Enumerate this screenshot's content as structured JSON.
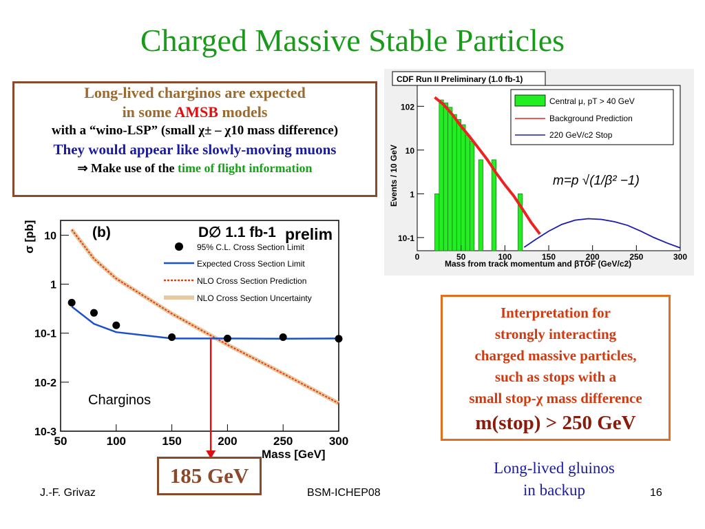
{
  "slide": {
    "title": "Charged Massive Stable Particles",
    "footer_left": "J.-F. Grivaz",
    "footer_center": "BSM-ICHEP08",
    "footer_page": "16"
  },
  "box_left": {
    "line1": "Long-lived charginos are expected",
    "line2_pre": "in some ",
    "line2_red": "AMSB",
    "line2_post": " models",
    "line3": "with a “wino-LSP” (small χ± – χ10 mass difference)",
    "line4": "They would appear like slowly-moving muons",
    "line5_pre": "⇒ Make use of the ",
    "line5_green": "time of flight information"
  },
  "box_right": {
    "line1": "Interpretation for",
    "line2": "strongly interacting",
    "line3": "charged massive particles,",
    "line4": "such as stops with a",
    "line5": "small stop-χ mass difference",
    "line6": "m(stop) > 250 GeV"
  },
  "limit_box": "185 GeV",
  "backup_note": {
    "line1": "Long-lived gluinos",
    "line2": "in backup"
  },
  "chart_data": [
    {
      "type": "line",
      "panel_label": "(b)",
      "experiment": "D∅ 1.1 fb-1",
      "prelim": "prelim",
      "annotation": "Charginos",
      "xlabel": "Mass [GeV]",
      "ylabel": "σ [pb]",
      "xlim": [
        50,
        300
      ],
      "ylim": [
        0.001,
        20
      ],
      "yscale": "log",
      "x_ticks": [
        "50",
        "100",
        "150",
        "200",
        "250",
        "300"
      ],
      "y_ticks": [
        "10-3",
        "10-2",
        "10-1",
        "1",
        "10"
      ],
      "legend": [
        "95% C.L. Cross Section Limit",
        "Expected Cross Section Limit",
        "NLO Cross Section Prediction",
        "NLO Cross Section Uncertainty"
      ],
      "series": [
        {
          "name": "95% C.L. Cross Section Limit",
          "type": "scatter",
          "color": "#000000",
          "points": [
            [
              60,
              0.42
            ],
            [
              80,
              0.26
            ],
            [
              100,
              0.145
            ],
            [
              150,
              0.083
            ],
            [
              200,
              0.078
            ],
            [
              250,
              0.083
            ],
            [
              300,
              0.077
            ]
          ]
        },
        {
          "name": "Expected Cross Section Limit",
          "type": "line",
          "color": "#1a4fd0",
          "points": [
            [
              60,
              0.35
            ],
            [
              80,
              0.155
            ],
            [
              100,
              0.105
            ],
            [
              150,
              0.078
            ],
            [
              200,
              0.078
            ],
            [
              250,
              0.077
            ],
            [
              300,
              0.078
            ]
          ]
        },
        {
          "name": "NLO Cross Section Prediction",
          "type": "line",
          "color": "#e04010",
          "points": [
            [
              60,
              13
            ],
            [
              80,
              3.3
            ],
            [
              100,
              1.3
            ],
            [
              150,
              0.25
            ],
            [
              200,
              0.058
            ],
            [
              250,
              0.015
            ],
            [
              300,
              0.0037
            ]
          ]
        }
      ],
      "limit_marker_x": 185
    },
    {
      "type": "bar",
      "title": "CDF Run II Preliminary (1.0 fb-1)",
      "xlabel": "Mass from track momentum and βTOF (GeV/c2)",
      "ylabel": "Events / 10 GeV",
      "xlim": [
        0,
        300
      ],
      "ylim": [
        0.05,
        300
      ],
      "yscale": "log",
      "x_ticks": [
        "0",
        "50",
        "100",
        "150",
        "200",
        "250",
        "300"
      ],
      "y_ticks": [
        "10-1",
        "1",
        "10",
        "102"
      ],
      "formula": "m=p √(1/β² −1)",
      "legend": [
        "Central μ, pT > 40 GeV",
        "Background Prediction",
        "220 GeV/c2 Stop"
      ],
      "histogram": {
        "name": "Central μ, pT > 40 GeV",
        "color": "#22ee22",
        "bins": [
          [
            15,
            0.07
          ],
          [
            20,
            1.0
          ],
          [
            25,
            140
          ],
          [
            30,
            120
          ],
          [
            35,
            95
          ],
          [
            40,
            65
          ],
          [
            45,
            50
          ],
          [
            50,
            38
          ],
          [
            55,
            22
          ],
          [
            60,
            16
          ],
          [
            65,
            0.07
          ],
          [
            70,
            6
          ],
          [
            80,
            0.07
          ],
          [
            85,
            6
          ],
          [
            100,
            0.07
          ],
          [
            115,
            1.0
          ]
        ]
      },
      "background": {
        "name": "Background Prediction",
        "color": "#ee2020",
        "points": [
          [
            20,
            160
          ],
          [
            30,
            110
          ],
          [
            40,
            65
          ],
          [
            50,
            35
          ],
          [
            60,
            20
          ],
          [
            70,
            11
          ],
          [
            80,
            6
          ],
          [
            90,
            3
          ],
          [
            100,
            1.6
          ],
          [
            110,
            0.9
          ],
          [
            120,
            0.45
          ],
          [
            130,
            0.22
          ],
          [
            140,
            0.12
          ]
        ]
      },
      "signal": {
        "name": "220 GeV/c2 Stop",
        "color": "#1a1ab0",
        "points": [
          [
            122,
            0.06
          ],
          [
            135,
            0.09
          ],
          [
            150,
            0.14
          ],
          [
            165,
            0.2
          ],
          [
            180,
            0.25
          ],
          [
            195,
            0.27
          ],
          [
            210,
            0.26
          ],
          [
            225,
            0.23
          ],
          [
            240,
            0.19
          ],
          [
            255,
            0.14
          ],
          [
            270,
            0.1
          ],
          [
            285,
            0.075
          ],
          [
            300,
            0.058
          ]
        ]
      }
    }
  ]
}
